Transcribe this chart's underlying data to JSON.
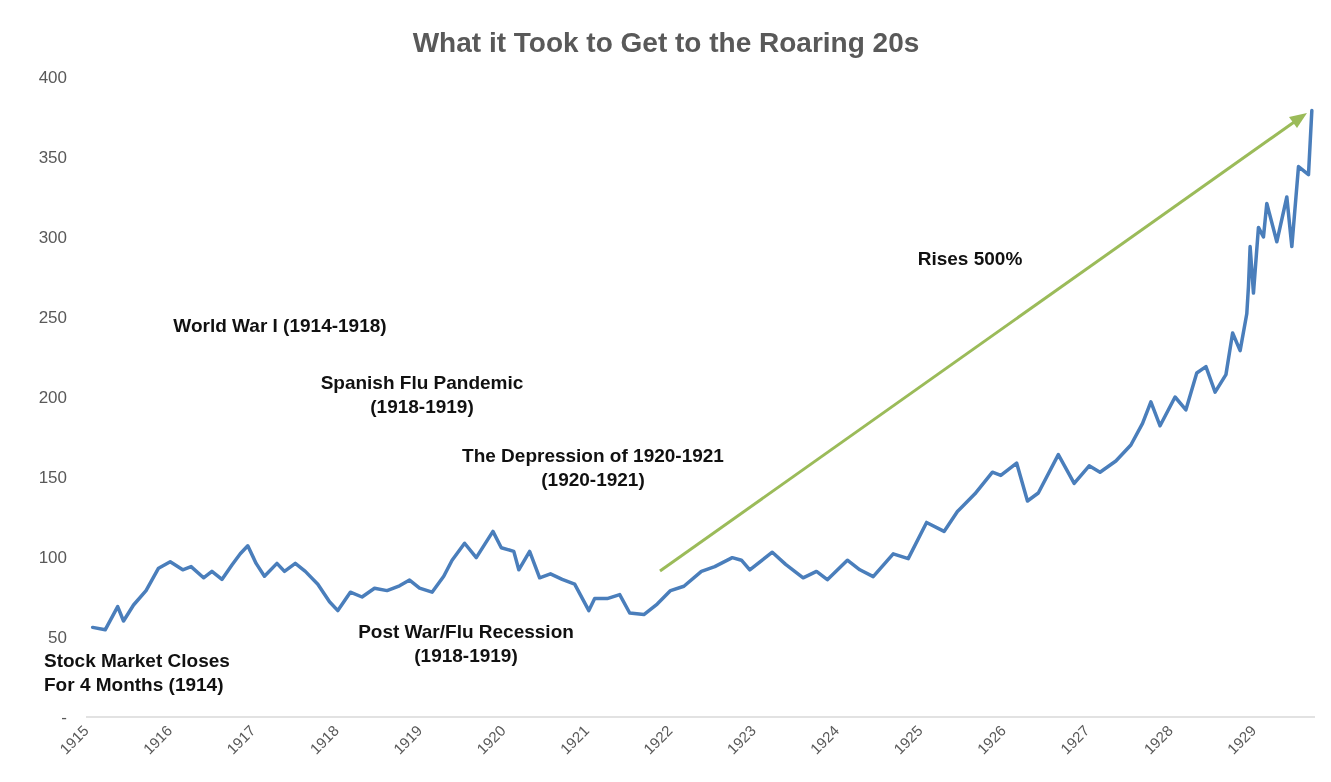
{
  "chart_data": {
    "type": "line",
    "title": "What it Took to Get to the Roaring 20s",
    "x": [
      1915.08,
      1915.23,
      1915.38,
      1915.45,
      1915.57,
      1915.72,
      1915.87,
      1916.01,
      1916.16,
      1916.26,
      1916.41,
      1916.51,
      1916.63,
      1916.75,
      1916.85,
      1916.94,
      1917.04,
      1917.14,
      1917.29,
      1917.38,
      1917.51,
      1917.63,
      1917.78,
      1917.92,
      1918.02,
      1918.17,
      1918.31,
      1918.46,
      1918.61,
      1918.76,
      1918.88,
      1919.0,
      1919.15,
      1919.29,
      1919.39,
      1919.54,
      1919.68,
      1919.88,
      1919.98,
      1920.13,
      1920.19,
      1920.32,
      1920.44,
      1920.57,
      1920.71,
      1920.86,
      1921.03,
      1921.1,
      1921.25,
      1921.4,
      1921.52,
      1921.69,
      1921.85,
      1922.01,
      1922.17,
      1922.38,
      1922.54,
      1922.75,
      1922.86,
      1922.96,
      1923.23,
      1923.39,
      1923.6,
      1923.76,
      1923.89,
      1924.13,
      1924.28,
      1924.44,
      1924.68,
      1924.86,
      1925.08,
      1925.29,
      1925.45,
      1925.66,
      1925.87,
      1925.97,
      1926.16,
      1926.29,
      1926.42,
      1926.66,
      1926.85,
      1927.03,
      1927.16,
      1927.35,
      1927.53,
      1927.67,
      1927.77,
      1927.88,
      1928.06,
      1928.19,
      1928.32,
      1928.43,
      1928.54,
      1928.67,
      1928.75,
      1928.84,
      1928.92,
      1928.94,
      1928.96,
      1929.0,
      1929.06,
      1929.12,
      1929.16,
      1929.28,
      1929.4,
      1929.46,
      1929.54,
      1929.66,
      1929.7
    ],
    "series": [
      {
        "color": "#4a7ebb",
        "values": [
          56,
          54.5,
          69,
          60,
          70,
          79,
          93,
          97,
          92,
          94,
          87,
          91,
          86,
          95,
          102,
          107,
          96,
          88,
          96,
          91,
          96,
          91,
          83,
          72,
          66.5,
          78,
          75,
          80.5,
          79,
          82,
          85.6,
          80.5,
          78,
          88,
          98,
          108.6,
          99.6,
          116,
          105.8,
          103.5,
          92,
          103.5,
          87,
          89.5,
          86,
          83,
          66.5,
          74,
          74,
          76.5,
          65,
          64,
          70.6,
          79,
          81.7,
          91,
          94,
          99.6,
          98,
          92,
          103,
          95.4,
          87,
          91,
          85.8,
          98,
          92,
          87.7,
          102,
          99,
          121.6,
          116,
          128.4,
          139.5,
          153,
          151,
          158.7,
          135,
          140,
          164,
          146,
          157,
          153,
          160,
          170,
          183.5,
          197,
          182,
          200,
          192,
          215,
          219,
          203,
          214,
          240,
          229,
          252,
          269,
          294,
          265,
          306,
          300,
          321,
          297,
          325,
          294,
          344,
          339,
          379
        ]
      }
    ],
    "xlim": [
      1915,
      1929.75
    ],
    "xticks": [
      1915,
      1916,
      1917,
      1918,
      1919,
      1920,
      1921,
      1922,
      1923,
      1924,
      1925,
      1926,
      1927,
      1928,
      1929
    ],
    "ylim": [
      0,
      400
    ],
    "yticks": [
      {
        "value": 0,
        "label": "-"
      },
      50,
      100,
      150,
      200,
      250,
      300,
      350,
      400
    ],
    "grid": false,
    "marker": "none",
    "line_style": "solid",
    "annotations": [
      "World War I (1914-1918)",
      "Spanish Flu Pandemic\n(1918-1919)",
      "The Depression of 1920-1921\n(1920-1921)",
      "Rises 500%",
      "Post War/Flu Recession\n(1918-1919)",
      "Stock Market Closes\nFor 4 Months (1914)"
    ]
  }
}
